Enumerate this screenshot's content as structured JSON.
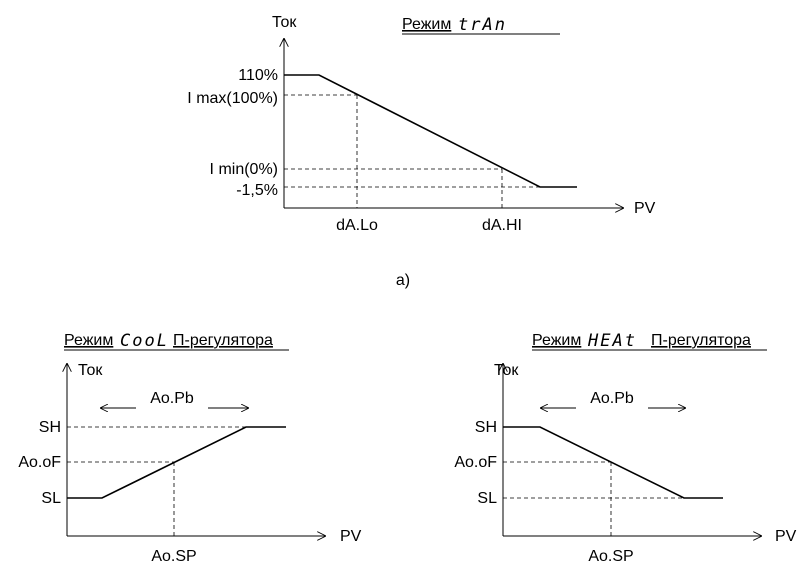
{
  "top": {
    "title_prefix": "Режим",
    "title_mode": "trAn",
    "y_axis": "Ток",
    "x_axis": "PV",
    "y_labels": [
      "110%",
      "I max(100%)",
      "I min(0%)",
      "-1,5%"
    ],
    "x_labels": [
      "dA.Lo",
      "dA.HI"
    ],
    "caption": "а)"
  },
  "cool": {
    "title_prefix": "Режим",
    "title_mode": "CooL",
    "title_suffix": "П-регулятора",
    "y_axis": "Ток",
    "x_axis": "PV",
    "band": "Ao.Pb",
    "y_labels": [
      "SH",
      "Ao.oF",
      "SL"
    ],
    "x_label": "Ao.SP"
  },
  "heat": {
    "title_prefix": "Режим",
    "title_mode": "HEAt",
    "title_suffix": "П-регулятора",
    "y_axis": "Ток",
    "x_axis": "PV",
    "band": "Ao.Pb",
    "y_labels": [
      "SH",
      "Ao.oF",
      "SL"
    ],
    "x_label": "Ao.SP"
  }
}
